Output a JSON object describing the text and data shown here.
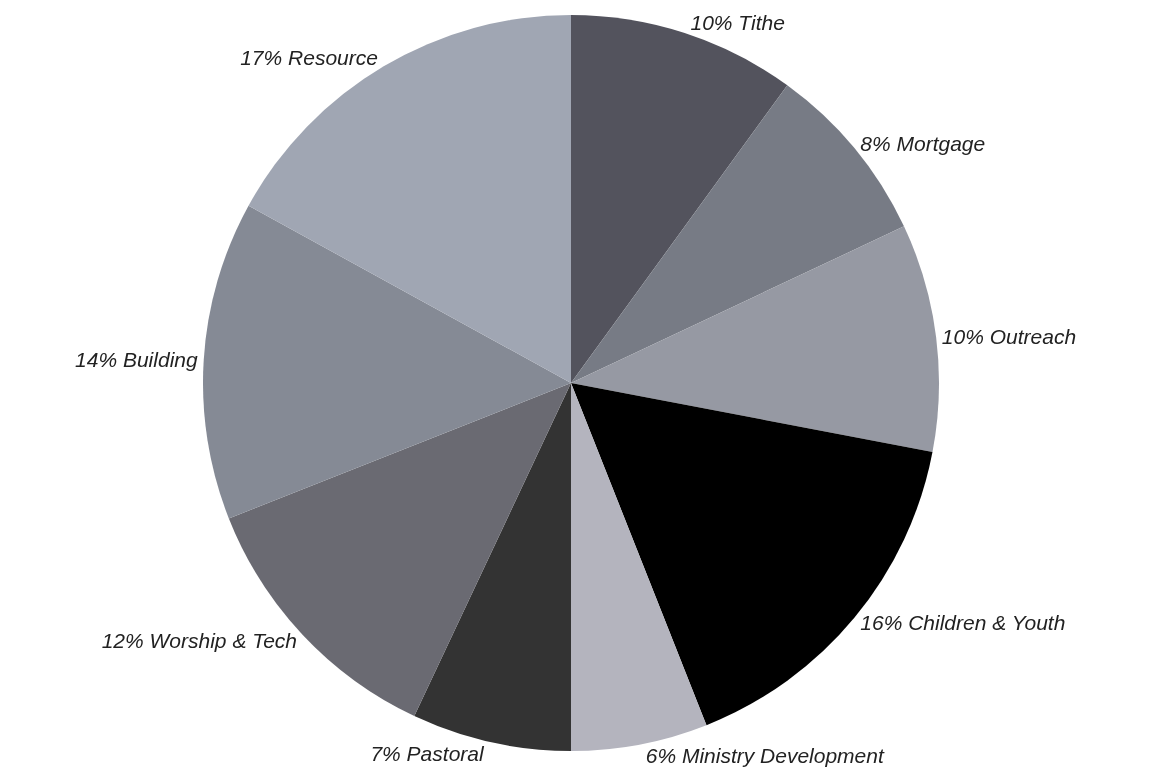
{
  "chart_data": {
    "type": "pie",
    "categories": [
      "Tithe",
      "Mortgage",
      "Outreach",
      "Children & Youth",
      "Ministry Development",
      "Pastoral",
      "Worship & Tech",
      "Building",
      "Resource"
    ],
    "values": [
      10,
      8,
      10,
      16,
      6,
      7,
      12,
      14,
      17
    ],
    "value_labels": [
      "10%",
      "8%",
      "10%",
      "16%",
      "6%",
      "7%",
      "12%",
      "14%",
      "17%"
    ],
    "colors": [
      "#53535d",
      "#777b85",
      "#9699a3",
      "#000000",
      "#b4b4be",
      "#333333",
      "#6a6a72",
      "#858a95",
      "#a0a6b3"
    ],
    "legend": false
  }
}
